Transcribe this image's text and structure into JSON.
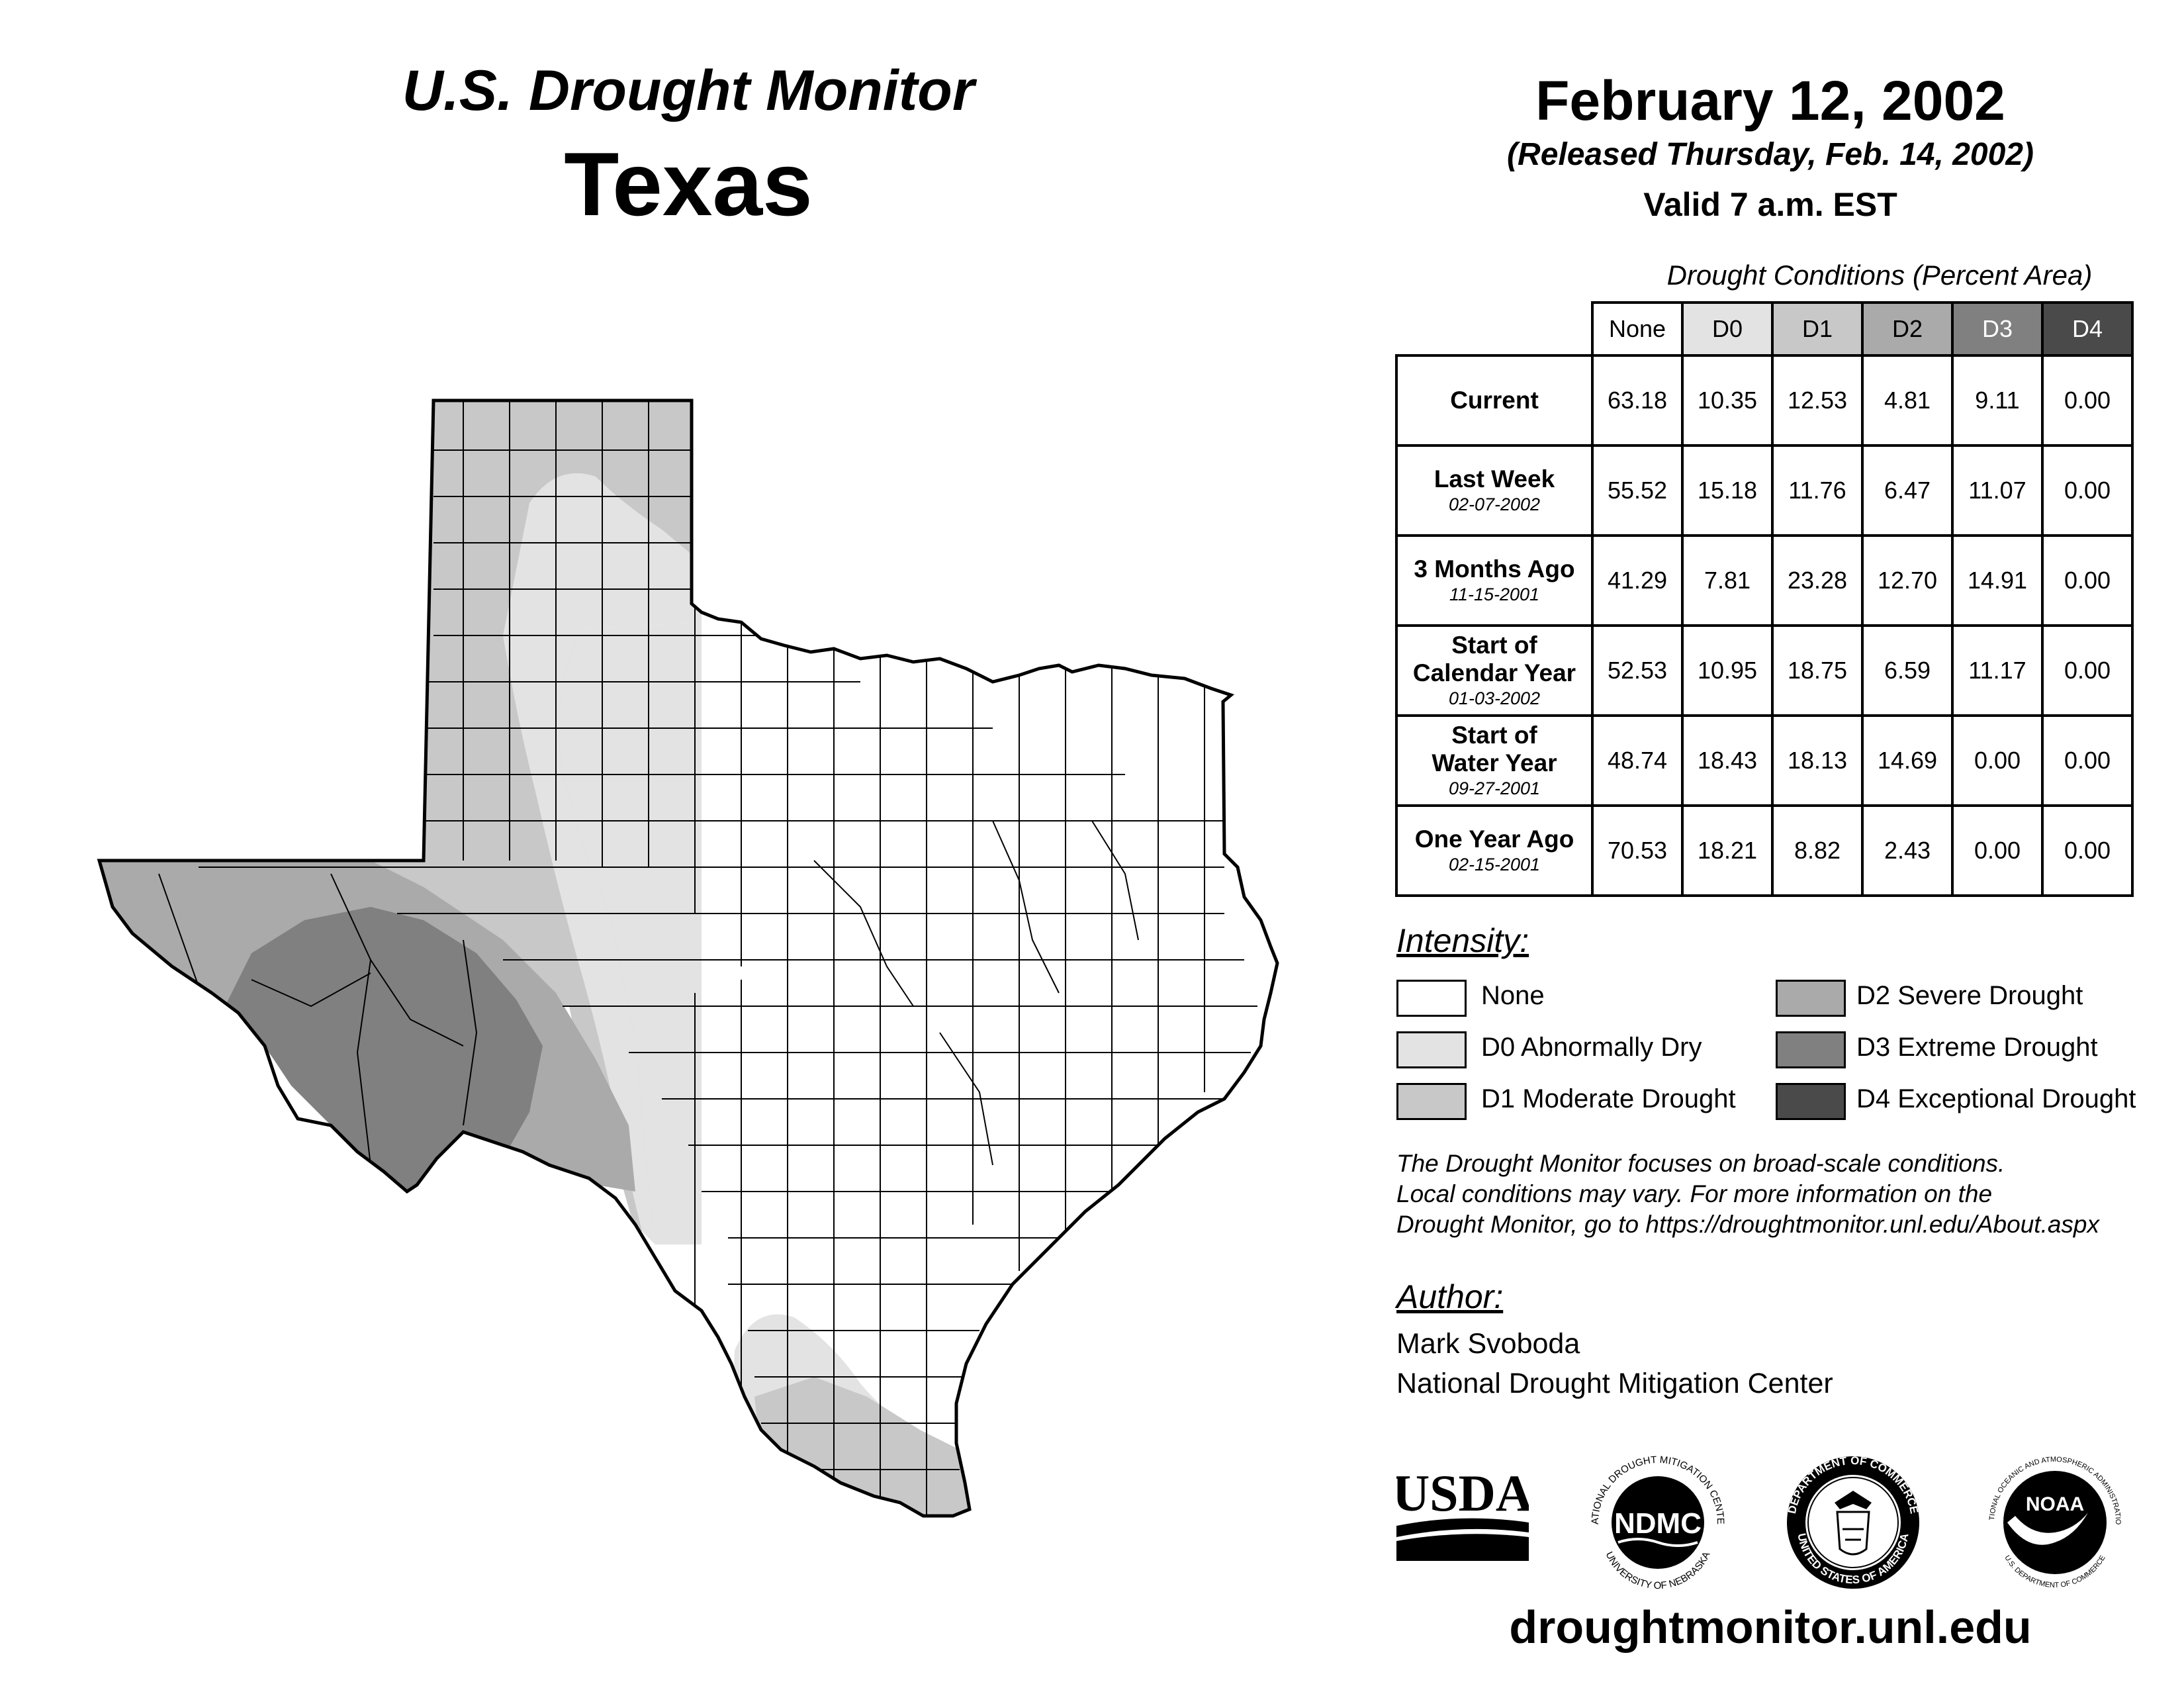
{
  "header": {
    "title": "U.S. Drought Monitor",
    "state": "Texas",
    "date": "February 12, 2002",
    "released": "(Released Thursday, Feb. 14, 2002)",
    "valid": "Valid 7 a.m. EST"
  },
  "table": {
    "caption": "Drought Conditions (Percent Area)",
    "columns": [
      "None",
      "D0",
      "D1",
      "D2",
      "D3",
      "D4"
    ],
    "rows": [
      {
        "label": "Current",
        "date": "",
        "values": [
          "63.18",
          "10.35",
          "12.53",
          "4.81",
          "9.11",
          "0.00"
        ]
      },
      {
        "label": "Last Week",
        "date": "02-07-2002",
        "values": [
          "55.52",
          "15.18",
          "11.76",
          "6.47",
          "11.07",
          "0.00"
        ]
      },
      {
        "label": "3 Months Ago",
        "date": "11-15-2001",
        "values": [
          "41.29",
          "7.81",
          "23.28",
          "12.70",
          "14.91",
          "0.00"
        ]
      },
      {
        "label": "Start of Calendar Year",
        "label_l1": "Start of",
        "label_l2": "Calendar Year",
        "date": "01-03-2002",
        "values": [
          "52.53",
          "10.95",
          "18.75",
          "6.59",
          "11.17",
          "0.00"
        ]
      },
      {
        "label": "Start of Water Year",
        "label_l1": "Start of",
        "label_l2": "Water Year",
        "date": "09-27-2001",
        "values": [
          "48.74",
          "18.43",
          "18.13",
          "14.69",
          "0.00",
          "0.00"
        ]
      },
      {
        "label": "One Year Ago",
        "date": "02-15-2001",
        "values": [
          "70.53",
          "18.21",
          "8.82",
          "2.43",
          "0.00",
          "0.00"
        ]
      }
    ]
  },
  "legend": {
    "heading": "Intensity:",
    "items": [
      {
        "label": "None",
        "color": "#ffffff"
      },
      {
        "label": "D0 Abnormally Dry",
        "color": "#e3e3e3"
      },
      {
        "label": "D1 Moderate Drought",
        "color": "#c8c8c8"
      },
      {
        "label": "D2 Severe Drought",
        "color": "#aaaaaa"
      },
      {
        "label": "D3 Extreme Drought",
        "color": "#808080"
      },
      {
        "label": "D4 Exceptional Drought",
        "color": "#4a4a4a"
      }
    ]
  },
  "note": {
    "line1": "The Drought Monitor focuses on broad-scale conditions.",
    "line2": "Local conditions may vary. For more information on the",
    "line3": "Drought Monitor, go to https://droughtmonitor.unl.edu/About.aspx"
  },
  "author": {
    "heading": "Author:",
    "name": "Mark Svoboda",
    "org": "National Drought Mitigation Center"
  },
  "logos": {
    "usda": "USDA",
    "ndmc": "NDMC",
    "ndmc_top": "NATIONAL DROUGHT MITIGATION CENTER",
    "ndmc_bottom": "UNIVERSITY OF NEBRASKA",
    "doc_top": "DEPARTMENT OF COMMERCE",
    "doc_bottom": "UNITED STATES OF AMERICA",
    "noaa": "NOAA",
    "noaa_top": "NATIONAL OCEANIC AND ATMOSPHERIC ADMINISTRATION",
    "noaa_bottom": "U.S. DEPARTMENT OF COMMERCE"
  },
  "footer_url": "droughtmonitor.unl.edu"
}
